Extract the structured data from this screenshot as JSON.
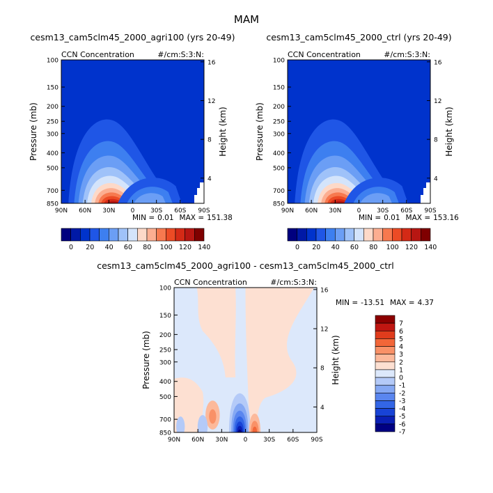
{
  "figure": {
    "title": "MAM"
  },
  "palettes": {
    "abs": [
      "#00007f",
      "#0019a6",
      "#0033cc",
      "#1f56e6",
      "#3d7ff0",
      "#6b9ef5",
      "#9fc2f9",
      "#d4e4fb",
      "#fdd9c8",
      "#fcae91",
      "#f7794f",
      "#ec4b25",
      "#d42a16",
      "#b71612",
      "#7f0000"
    ],
    "diff": [
      "#000082",
      "#0a1fb4",
      "#1843d6",
      "#3366e6",
      "#5a86ef",
      "#85a8f3",
      "#b4caf8",
      "#dce8fb",
      "#fde0d2",
      "#fcb99b",
      "#f99167",
      "#f26638",
      "#e03c1c",
      "#c01611",
      "#8c0000"
    ]
  },
  "chart_data": [
    {
      "id": "left",
      "type": "contour",
      "title": "cesm13_cam5clm45_2000_agri100 (yrs 20-49)",
      "left_label": "CCN Concentration",
      "right_label": "#/cm:S:3:N:",
      "ylabel": "Pressure (mb)",
      "ylabel_right": "Height (km)",
      "yticks": [
        "100",
        "150",
        "200",
        "250",
        "300",
        "400",
        "500",
        "700",
        "850"
      ],
      "yticks_right": [
        "16",
        "12",
        "8",
        "4"
      ],
      "xticks": [
        "90N",
        "60N",
        "30N",
        "0",
        "30S",
        "60S",
        "90S"
      ],
      "stats": {
        "min_label": "MIN =",
        "min": "0.01",
        "max_label": "MAX =",
        "max": "151.38"
      },
      "colorbar_labels": [
        "0",
        "20",
        "40",
        "60",
        "80",
        "100",
        "120",
        "140"
      ]
    },
    {
      "id": "right",
      "type": "contour",
      "title": "cesm13_cam5clm45_2000_ctrl (yrs 20-49)",
      "left_label": "CCN Concentration",
      "right_label": "#/cm:S:3:N:",
      "ylabel": "Pressure (mb)",
      "ylabel_right": "Height (km)",
      "yticks": [
        "100",
        "150",
        "200",
        "250",
        "300",
        "400",
        "500",
        "700",
        "850"
      ],
      "yticks_right": [
        "16",
        "12",
        "8",
        "4"
      ],
      "xticks": [
        "90N",
        "60N",
        "30N",
        "0",
        "30S",
        "60S",
        "90S"
      ],
      "stats": {
        "min_label": "MIN =",
        "min": "0.01",
        "max_label": "MAX =",
        "max": "153.16"
      },
      "colorbar_labels": [
        "0",
        "20",
        "40",
        "60",
        "80",
        "100",
        "120",
        "140"
      ]
    },
    {
      "id": "diff",
      "type": "contour",
      "title": "cesm13_cam5clm45_2000_agri100 - cesm13_cam5clm45_2000_ctrl",
      "left_label": "CCN Concentration",
      "right_label": "#/cm:S:3:N:",
      "ylabel": "Pressure (mb)",
      "ylabel_right": "Height (km)",
      "yticks": [
        "100",
        "150",
        "200",
        "250",
        "300",
        "400",
        "500",
        "700",
        "850"
      ],
      "yticks_right": [
        "16",
        "12",
        "8",
        "4"
      ],
      "xticks": [
        "90N",
        "60N",
        "30N",
        "0",
        "30S",
        "60S",
        "90S"
      ],
      "stats": {
        "min_label": "MIN =",
        "min": "-13.51",
        "max_label": "MAX =",
        "max": "4.37"
      },
      "colorbar_labels": [
        "7",
        "6",
        "5",
        "4",
        "3",
        "2",
        "1",
        "0",
        "-1",
        "-2",
        "-3",
        "-4",
        "-5",
        "-6",
        "-7"
      ]
    }
  ]
}
